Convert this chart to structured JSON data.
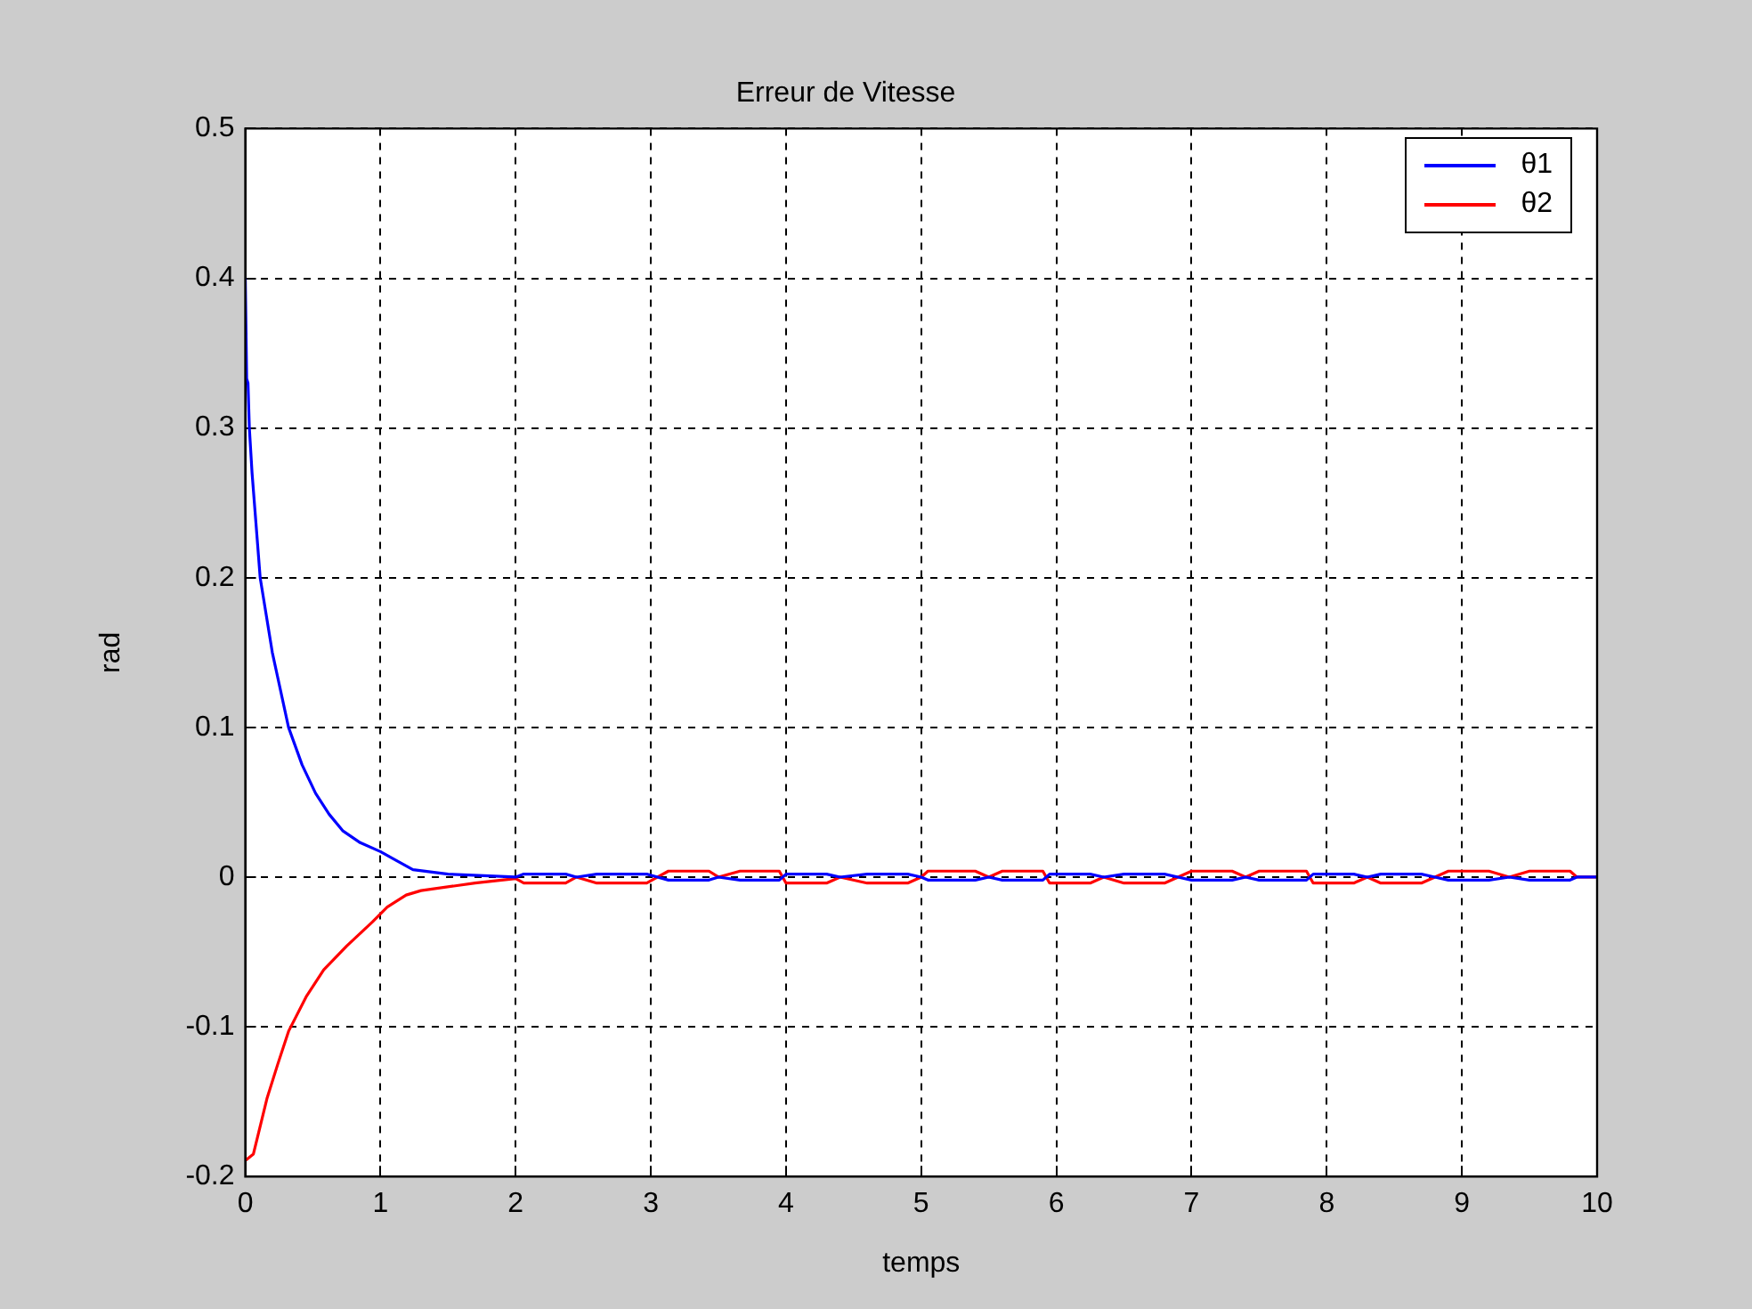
{
  "chart_data": {
    "type": "line",
    "title": "Erreur de Vitesse",
    "xlabel": "temps",
    "ylabel": "rad",
    "xlim": [
      0,
      10
    ],
    "ylim": [
      -0.2,
      0.5
    ],
    "xticks": [
      0,
      1,
      2,
      3,
      4,
      5,
      6,
      7,
      8,
      9,
      10
    ],
    "yticks": [
      -0.2,
      -0.1,
      0,
      0.1,
      0.2,
      0.3,
      0.4,
      0.5
    ],
    "grid": true,
    "legend": "top right",
    "line_style": "solid",
    "marker": "none",
    "series": [
      {
        "name": "θ1",
        "color": "#0000ff",
        "x": [
          0,
          0.01,
          0.02,
          0.03,
          0.05,
          0.11,
          0.2,
          0.32,
          0.42,
          0.52,
          0.62,
          0.72,
          0.85,
          1.0,
          1.1,
          1.24,
          1.5,
          2.0,
          2.06,
          2.37,
          2.45,
          2.6,
          2.97,
          3.05,
          3.13,
          3.43,
          3.5,
          3.66,
          3.95,
          4.0,
          4.3,
          4.4,
          4.6,
          4.9,
          5.0,
          5.05,
          5.4,
          5.5,
          5.6,
          5.9,
          5.95,
          6.25,
          6.35,
          6.5,
          6.8,
          6.9,
          7.0,
          7.3,
          7.4,
          7.5,
          7.85,
          7.9,
          8.2,
          8.3,
          8.4,
          8.7,
          8.8,
          8.9,
          9.2,
          9.35,
          9.5,
          9.8,
          9.85,
          10
        ],
        "values": [
          0.4,
          0.333,
          0.33,
          0.3,
          0.27,
          0.2,
          0.15,
          0.1,
          0.075,
          0.056,
          0.042,
          0.031,
          0.023,
          0.017,
          0.012,
          0.005,
          0.002,
          0,
          0.002,
          0.002,
          0,
          0.002,
          0.002,
          0,
          -0.002,
          -0.002,
          0,
          -0.002,
          -0.002,
          0.002,
          0.002,
          0,
          0.002,
          0.002,
          0,
          -0.002,
          -0.002,
          0,
          -0.002,
          -0.002,
          0.002,
          0.002,
          0,
          0.002,
          0.002,
          0,
          -0.002,
          -0.002,
          0,
          -0.002,
          -0.002,
          0.002,
          0.002,
          0,
          0.002,
          0.002,
          0,
          -0.002,
          -0.002,
          0,
          -0.002,
          -0.002,
          0,
          0
        ]
      },
      {
        "name": "θ2",
        "color": "#ff0000",
        "x": [
          0.005,
          0.06,
          0.16,
          0.24,
          0.32,
          0.45,
          0.58,
          0.75,
          0.94,
          1.05,
          1.19,
          1.3,
          1.7,
          2.0,
          2.06,
          2.37,
          2.45,
          2.6,
          2.97,
          3.05,
          3.13,
          3.43,
          3.5,
          3.66,
          3.95,
          4.0,
          4.3,
          4.4,
          4.6,
          4.9,
          5.0,
          5.05,
          5.4,
          5.5,
          5.6,
          5.9,
          5.95,
          6.25,
          6.35,
          6.5,
          6.8,
          6.9,
          7.0,
          7.3,
          7.4,
          7.5,
          7.85,
          7.9,
          8.2,
          8.3,
          8.4,
          8.7,
          8.8,
          8.9,
          9.2,
          9.35,
          9.5,
          9.8,
          9.85,
          10
        ],
        "values": [
          -0.189,
          -0.185,
          -0.148,
          -0.125,
          -0.103,
          -0.08,
          -0.062,
          -0.046,
          -0.03,
          -0.02,
          -0.012,
          -0.009,
          -0.004,
          -0.001,
          -0.004,
          -0.004,
          0,
          -0.004,
          -0.004,
          0,
          0.004,
          0.004,
          0,
          0.004,
          0.004,
          -0.004,
          -0.004,
          0,
          -0.004,
          -0.004,
          0,
          0.004,
          0.004,
          0,
          0.004,
          0.004,
          -0.004,
          -0.004,
          0,
          -0.004,
          -0.004,
          0,
          0.004,
          0.004,
          0,
          0.004,
          0.004,
          -0.004,
          -0.004,
          0,
          -0.004,
          -0.004,
          0,
          0.004,
          0.004,
          0,
          0.004,
          0.004,
          0,
          0
        ]
      }
    ]
  }
}
